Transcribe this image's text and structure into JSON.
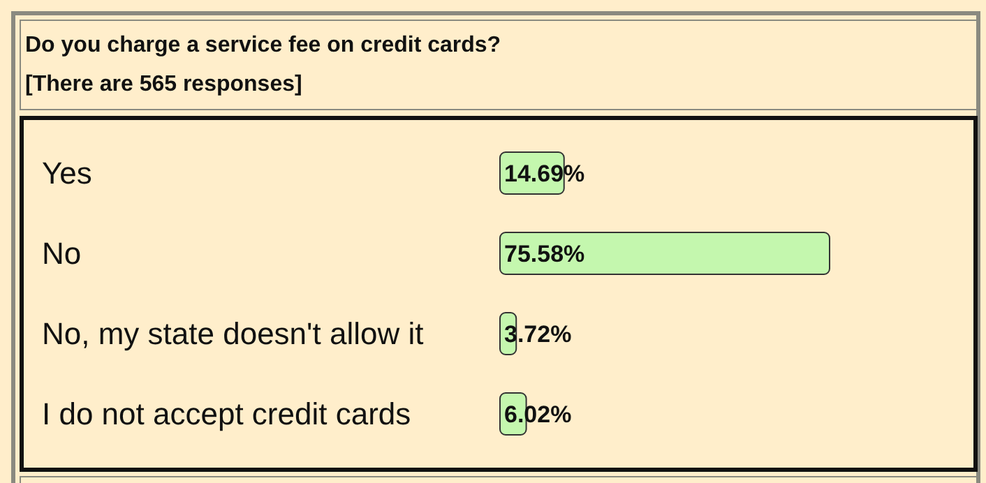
{
  "chart_data": {
    "type": "bar",
    "orientation": "horizontal",
    "title": "Do you charge a service fee on credit cards?",
    "subtitle": "[There are 565 responses]",
    "categories": [
      "Yes",
      "No",
      "No, my state doesn't allow it",
      "I do not accept credit cards"
    ],
    "values": [
      14.69,
      75.58,
      3.72,
      6.02
    ],
    "value_labels": [
      "14.69%",
      "75.58%",
      "3.72%",
      "6.02%"
    ],
    "color": "#c4f7ae"
  }
}
